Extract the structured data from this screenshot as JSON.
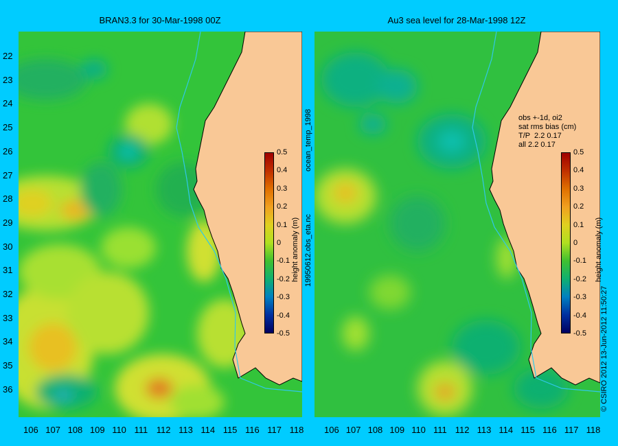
{
  "left_panel": {
    "title": "BRAN3.3 for 30-Mar-1998 00Z"
  },
  "right_panel": {
    "title": "Au3 sea level  for 28-Mar-1998 12Z"
  },
  "y_axis_ticks": [
    "22",
    "23",
    "24",
    "25",
    "26",
    "27",
    "28",
    "29",
    "30",
    "31",
    "32",
    "33",
    "34",
    "35",
    "36"
  ],
  "x_axis_ticks": [
    "106",
    "107",
    "108",
    "109",
    "110",
    "111",
    "112",
    "113",
    "114",
    "115",
    "116",
    "117",
    "118"
  ],
  "colorbar": {
    "label": "height anomaly (m)",
    "ticks": [
      "0.5",
      "0.4",
      "0.3",
      "0.2",
      "0.1",
      "0",
      "-0.1",
      "-0.2",
      "-0.3",
      "-0.4",
      "-0.5"
    ],
    "colors": [
      "#a00000",
      "#c03000",
      "#e07000",
      "#f0a020",
      "#e0d020",
      "#b0e020",
      "#40c030",
      "#10b070",
      "#0080c0",
      "#0030a0",
      "#000060"
    ]
  },
  "center_labels": {
    "top": "ocean_temp_1998",
    "bottom": "19950612.obs_eta.nc"
  },
  "stats_box": {
    "line1": "obs +-1d, oi2",
    "line2": "sat rms bias (cm)",
    "line3": "T/P  2.2 0.17",
    "line4": "all 2.2 0.17"
  },
  "credit": "© CSIRO 2012  13-Jun-2012 11:50:27",
  "colors": {
    "background": "#00ccff",
    "land": "#f9c896",
    "ocean_base": "#33cc44"
  }
}
